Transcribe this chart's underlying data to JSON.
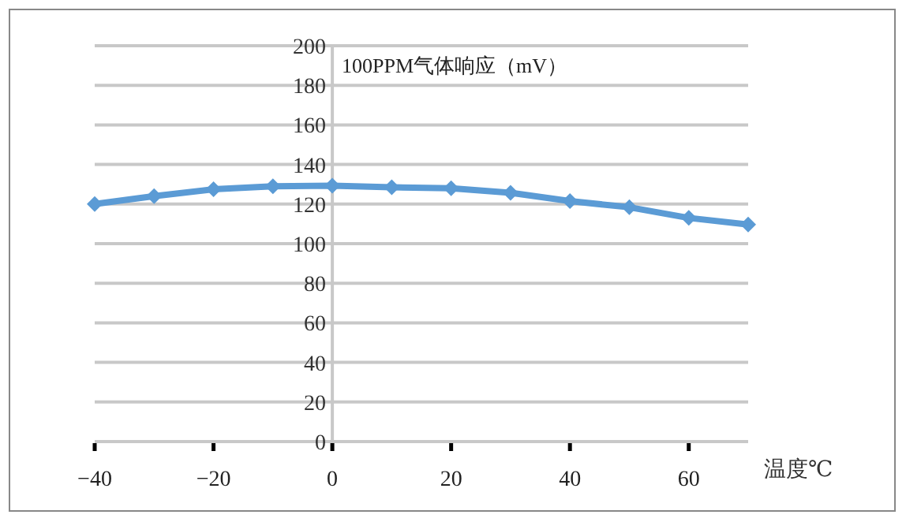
{
  "chart_data": {
    "type": "line",
    "title": "100PPM气体响应（mV）",
    "xlabel": "温度℃",
    "x": [
      -40,
      -30,
      -20,
      -10,
      0,
      10,
      20,
      30,
      40,
      50,
      60,
      70
    ],
    "series": [
      {
        "color": "#5b9bd5",
        "values": [
          120,
          124,
          127.5,
          129,
          129.3,
          128.5,
          128,
          125.7,
          121.5,
          118.4,
          113,
          109.7
        ]
      }
    ],
    "xlim": [
      -40,
      70
    ],
    "xticks": [
      -40,
      -20,
      0,
      20,
      40,
      60
    ],
    "ylim": [
      0,
      200
    ],
    "yticks": [
      0,
      20,
      40,
      60,
      80,
      100,
      120,
      140,
      160,
      180,
      200
    ],
    "grid": "y",
    "marker": "diamond",
    "line_style": "solid"
  }
}
